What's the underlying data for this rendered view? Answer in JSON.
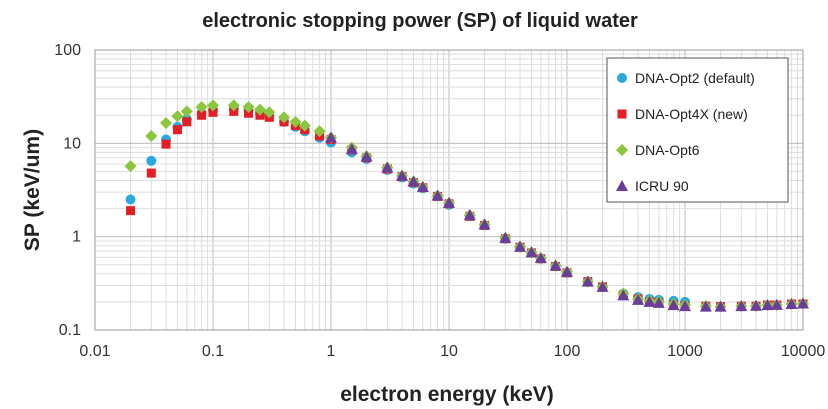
{
  "chart_data": {
    "type": "scatter",
    "title": "electronic stopping power (SP) of liquid water",
    "xlabel": "electron energy (keV)",
    "ylabel": "SP (keV/um)",
    "xscale": "log",
    "yscale": "log",
    "xlim": [
      0.01,
      10000
    ],
    "ylim": [
      0.1,
      100
    ],
    "x_ticks": [
      "0.01",
      "0.1",
      "1",
      "10",
      "100",
      "1000",
      "10000"
    ],
    "y_ticks": [
      "0.1",
      "1",
      "10",
      "100"
    ],
    "grid": true,
    "legend_position": "top-right",
    "series": [
      {
        "name": "DNA-Opt2 (default)",
        "color": "#29a9e0",
        "marker": "circle",
        "x": [
          0.02,
          0.03,
          0.04,
          0.05,
          0.06,
          0.08,
          0.1,
          0.15,
          0.2,
          0.25,
          0.3,
          0.4,
          0.5,
          0.6,
          0.8,
          1,
          1.5,
          2,
          3,
          4,
          5,
          6,
          8,
          10,
          15,
          20,
          30,
          40,
          50,
          60,
          80,
          100,
          150,
          200,
          300,
          400,
          500,
          600,
          800,
          1000
        ],
        "y": [
          2.5,
          6.5,
          11,
          15,
          18,
          21,
          22.5,
          23.5,
          22.5,
          21,
          19.5,
          17,
          15,
          13.5,
          11.5,
          10.2,
          8,
          6.8,
          5.2,
          4.3,
          3.7,
          3.3,
          2.7,
          2.2,
          1.65,
          1.32,
          0.95,
          0.77,
          0.67,
          0.58,
          0.48,
          0.41,
          0.33,
          0.29,
          0.245,
          0.225,
          0.215,
          0.21,
          0.205,
          0.2
        ]
      },
      {
        "name": "DNA-Opt4X (new)",
        "color": "#e31e24",
        "marker": "square",
        "x": [
          0.02,
          0.03,
          0.04,
          0.05,
          0.06,
          0.08,
          0.1,
          0.15,
          0.2,
          0.25,
          0.3,
          0.4,
          0.5,
          0.6,
          0.8,
          1,
          1.5,
          2,
          3,
          4,
          5,
          6,
          8,
          10,
          15,
          20,
          30,
          40,
          50,
          60,
          80,
          100,
          150,
          200,
          300,
          400,
          500,
          600,
          800,
          1000,
          1500,
          2000,
          3000,
          4000,
          5000,
          6000,
          8000,
          10000
        ],
        "y": [
          1.9,
          4.8,
          9.8,
          14,
          17,
          20,
          21.5,
          22,
          21,
          20,
          19,
          17,
          15.5,
          14,
          12,
          11,
          8.5,
          7,
          5.3,
          4.4,
          3.8,
          3.35,
          2.7,
          2.25,
          1.65,
          1.32,
          0.95,
          0.77,
          0.67,
          0.58,
          0.48,
          0.41,
          0.33,
          0.29,
          0.235,
          0.215,
          0.2,
          0.195,
          0.185,
          0.18,
          0.18,
          0.178,
          0.18,
          0.18,
          0.185,
          0.185,
          0.19,
          0.19
        ]
      },
      {
        "name": "DNA-Opt6",
        "color": "#8cc63f",
        "marker": "diamond",
        "x": [
          0.02,
          0.03,
          0.04,
          0.05,
          0.06,
          0.08,
          0.1,
          0.15,
          0.2,
          0.25,
          0.3,
          0.4,
          0.5,
          0.6,
          0.8,
          1,
          1.5,
          2,
          3,
          4,
          5,
          6,
          8,
          10,
          15,
          20,
          30,
          40,
          50,
          60,
          80,
          100,
          150,
          200,
          300,
          400,
          500,
          600,
          800,
          1000,
          1500,
          2000,
          3000,
          4000,
          5000,
          6000,
          8000,
          10000
        ],
        "y": [
          5.7,
          12,
          16.5,
          19.5,
          22,
          24.5,
          25.5,
          25.5,
          24.5,
          23,
          21.5,
          19,
          17,
          15.5,
          13.5,
          11.5,
          9,
          7.3,
          5.5,
          4.5,
          3.9,
          3.4,
          2.75,
          2.3,
          1.7,
          1.35,
          0.97,
          0.78,
          0.68,
          0.59,
          0.49,
          0.42,
          0.33,
          0.29,
          0.245,
          0.215,
          0.205,
          0.2,
          0.19,
          0.185,
          0.18,
          0.178,
          0.18,
          0.18,
          0.185,
          0.185,
          0.19,
          0.19
        ]
      },
      {
        "name": "ICRU 90",
        "color": "#6a3d9a",
        "marker": "triangle",
        "x": [
          1,
          1.5,
          2,
          3,
          4,
          5,
          6,
          8,
          10,
          15,
          20,
          30,
          40,
          50,
          60,
          80,
          100,
          150,
          200,
          300,
          400,
          500,
          600,
          800,
          1000,
          1500,
          2000,
          3000,
          4000,
          5000,
          6000,
          8000,
          10000
        ],
        "y": [
          11.5,
          8.7,
          7.2,
          5.5,
          4.5,
          3.9,
          3.4,
          2.75,
          2.3,
          1.7,
          1.35,
          0.97,
          0.78,
          0.68,
          0.59,
          0.49,
          0.42,
          0.33,
          0.29,
          0.235,
          0.21,
          0.2,
          0.195,
          0.185,
          0.18,
          0.178,
          0.178,
          0.18,
          0.182,
          0.185,
          0.186,
          0.19,
          0.192
        ]
      }
    ]
  }
}
